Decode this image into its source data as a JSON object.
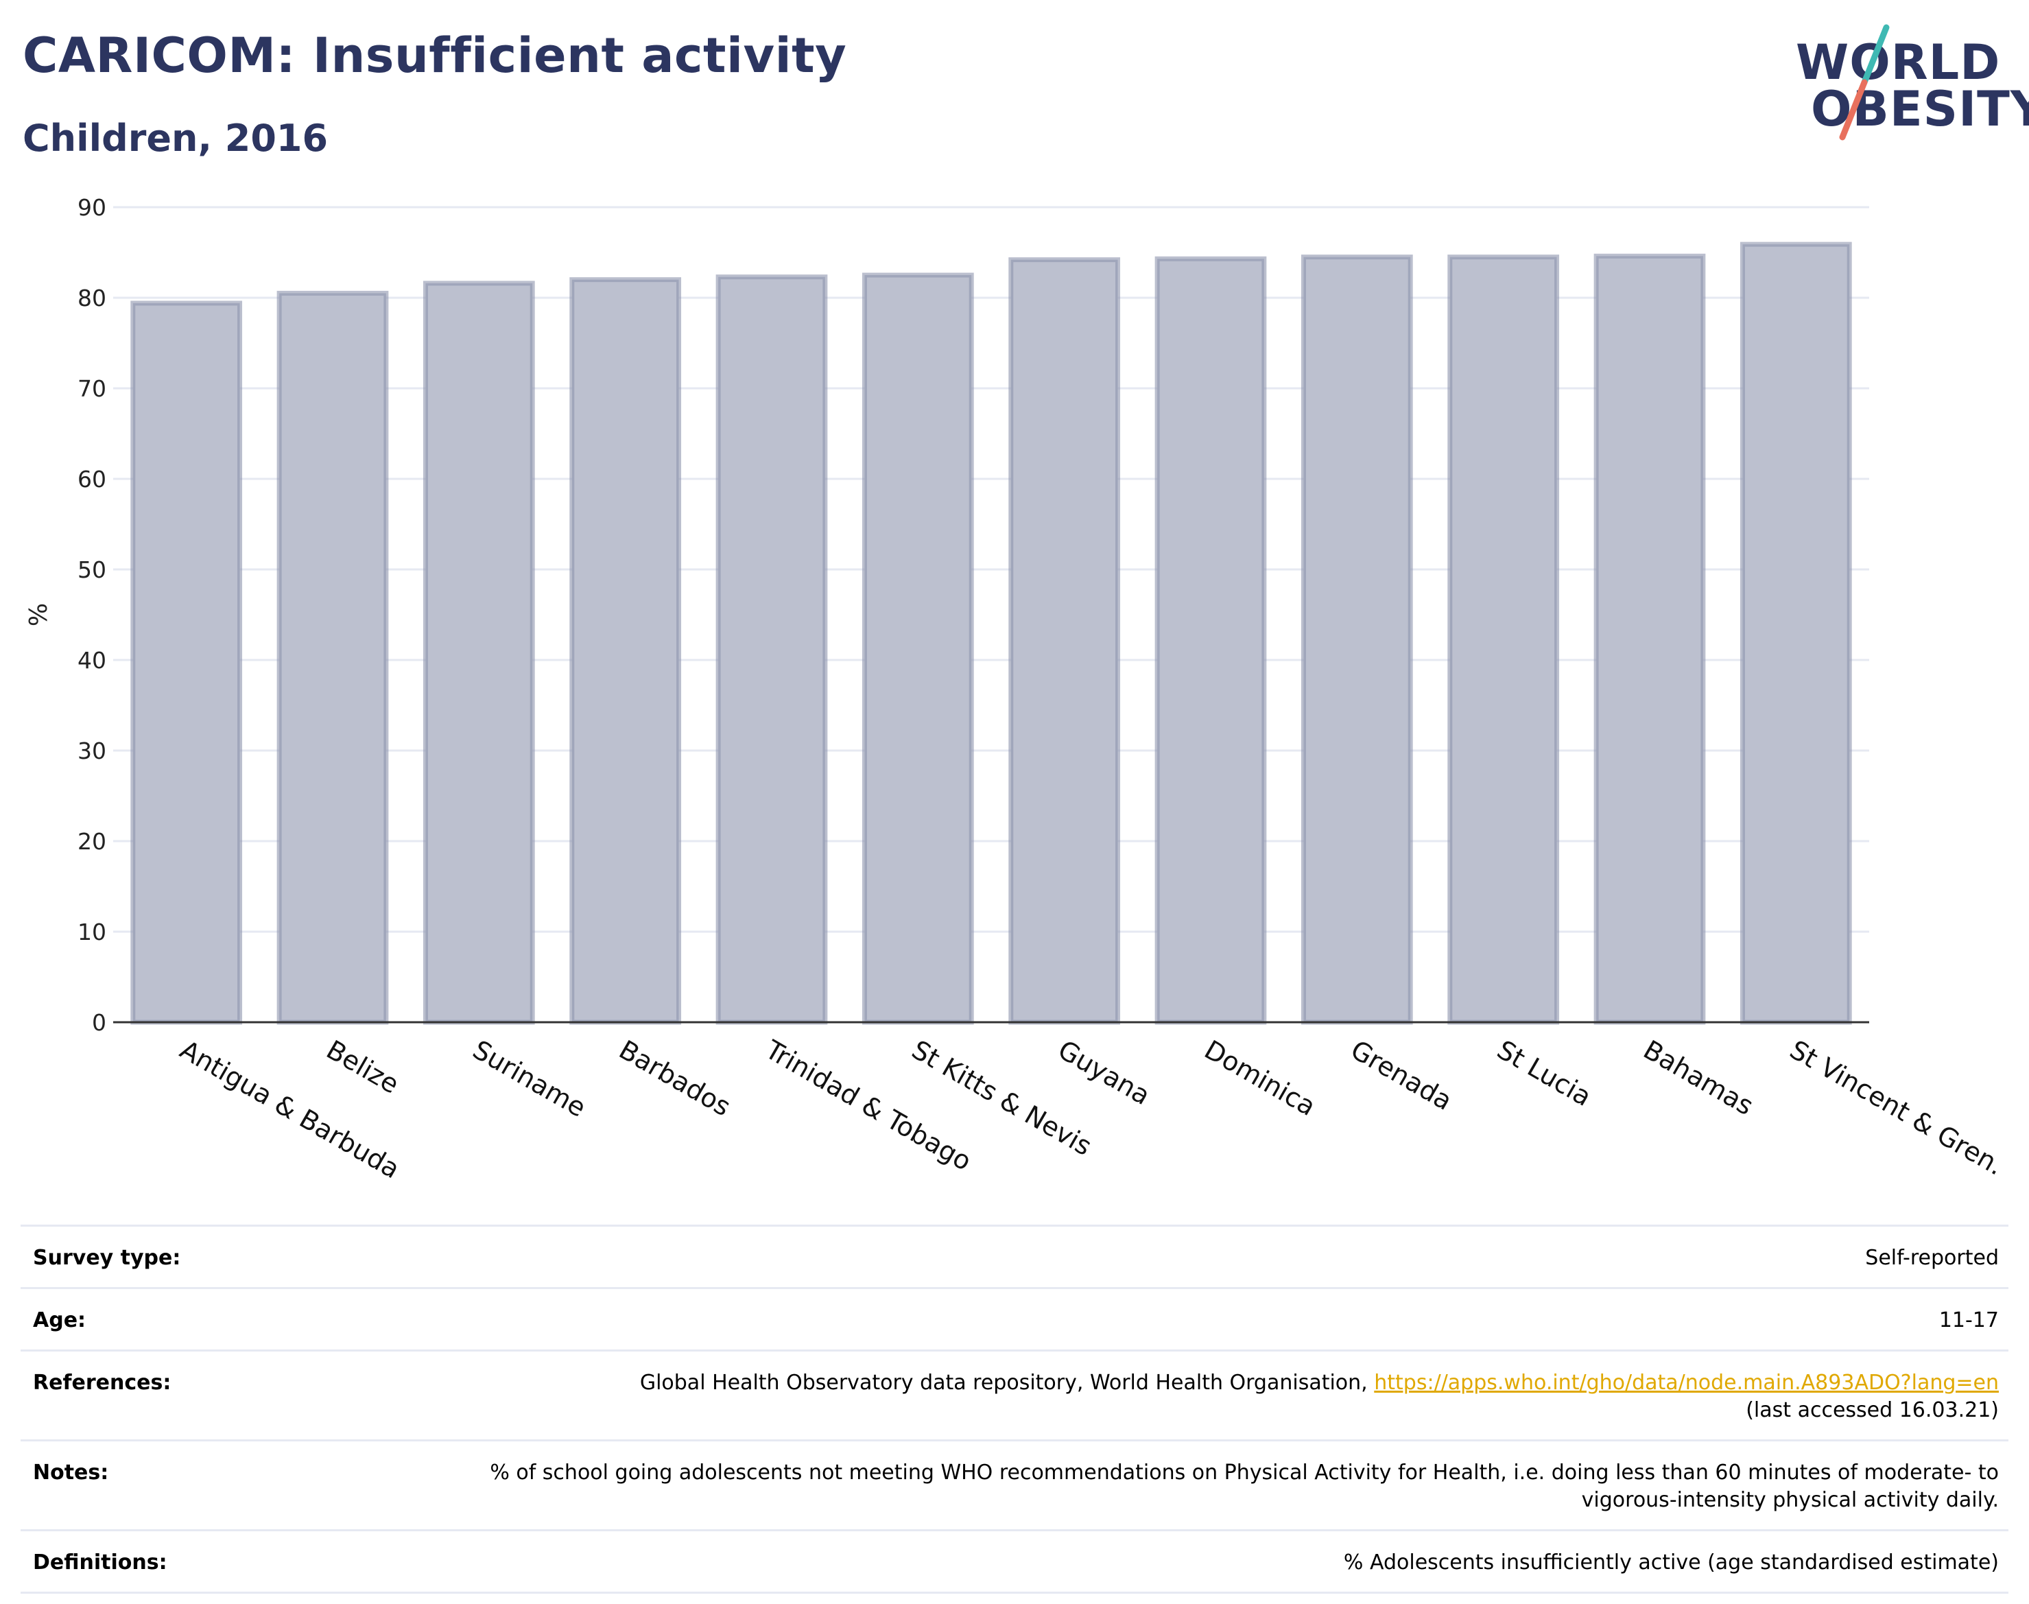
{
  "title": "CARICOM: Insufficient activity",
  "subtitle": "Children, 2016",
  "logo": {
    "line1": "WORLD",
    "line2": "OBESITY"
  },
  "colors": {
    "title": "#2c3560",
    "bar_fill": "#bcc0cf",
    "bar_stroke": "#8e95ad",
    "grid": "#e6e9f2",
    "link": "#e0a800",
    "logo_teal": "#3fb9b3",
    "logo_coral": "#e8705d"
  },
  "chart_data": {
    "type": "bar",
    "categories": [
      "Antigua & Barbuda",
      "Belize",
      "Suriname",
      "Barbados",
      "Trinidad & Tobago",
      "St Kitts & Nevis",
      "Guyana",
      "Dominica",
      "Grenada",
      "St Lucia",
      "Bahamas",
      "St Vincent & Gren."
    ],
    "values": [
      79.4,
      80.5,
      81.6,
      82.0,
      82.3,
      82.5,
      84.2,
      84.3,
      84.5,
      84.5,
      84.6,
      85.9
    ],
    "ylabel": "%",
    "ylim": [
      0,
      90
    ],
    "yticks": [
      0,
      10,
      20,
      30,
      40,
      50,
      60,
      70,
      80,
      90
    ],
    "grid": true,
    "legend": "none"
  },
  "info": [
    {
      "label": "Survey type:",
      "value": "Self-reported"
    },
    {
      "label": "Age:",
      "value": "11-17"
    },
    {
      "label": "References:",
      "value": "Global Health Observatory data repository, World Health Organisation,",
      "link": "https://apps.who.int/gho/data/node.main.A893ADO?lang=en",
      "value2": "(last accessed 16.03.21)"
    },
    {
      "label": "Notes:",
      "value": "% of school going adolescents not meeting WHO recommendations on Physical Activity for Health, i.e. doing less than 60 minutes of moderate- to vigorous-intensity physical activity daily."
    },
    {
      "label": "Definitions:",
      "value": "% Adolescents insufficiently active (age standardised estimate)"
    }
  ]
}
